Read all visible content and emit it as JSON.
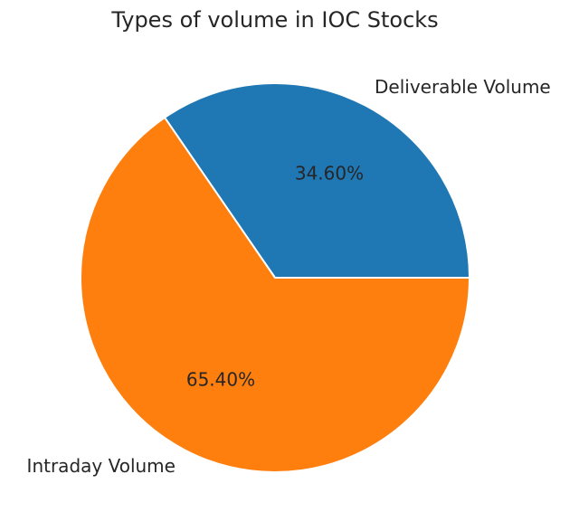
{
  "chart_data": {
    "type": "pie",
    "title": "Types of volume in IOC Stocks",
    "categories": [
      "Deliverable Volume",
      "Intraday Volume"
    ],
    "values": [
      34.6,
      65.4
    ],
    "value_labels": [
      "34.60%",
      "65.40%"
    ],
    "colors": [
      "#1f77b4",
      "#ff7f0e"
    ],
    "start_angle_deg": 0,
    "direction": "counterclockwise"
  }
}
